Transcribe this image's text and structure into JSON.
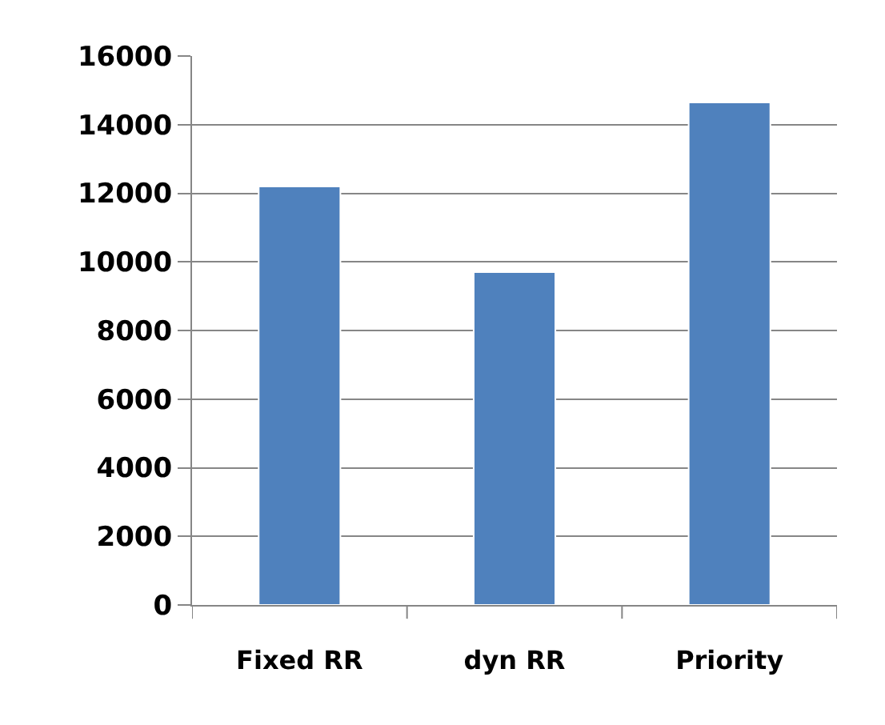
{
  "chart_data": {
    "type": "bar",
    "categories": [
      "Fixed RR",
      "dyn RR",
      "Priority"
    ],
    "values": [
      12200,
      9700,
      14650
    ],
    "color": "#4f81bd",
    "ylim": [
      0,
      16000
    ],
    "yticks": [
      0,
      2000,
      4000,
      6000,
      8000,
      10000,
      12000,
      14000,
      16000
    ],
    "grid": "y",
    "legend": false
  }
}
